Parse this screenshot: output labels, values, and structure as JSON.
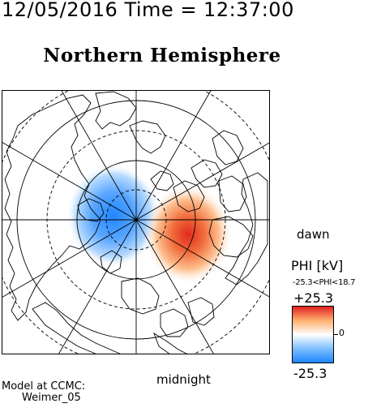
{
  "header": {
    "timestamp": "12/05/2016 Time = 12:37:00"
  },
  "map": {
    "title": "Northern Hemisphere",
    "projection": "polar-north",
    "local_time_labels": {
      "dawn": "dawn",
      "midnight": "midnight"
    },
    "potential_cells": [
      {
        "sign": "negative",
        "color": "#3a8ff0"
      },
      {
        "sign": "positive",
        "color": "#e03a2a"
      }
    ]
  },
  "legend": {
    "title": "PHI [kV]",
    "range_text": "-25.3<PHI<18.7",
    "max_label": "+25.3",
    "min_label": "-25.3",
    "zero_label": "0",
    "colorscale": [
      "#1f86ff",
      "#7fc0ff",
      "#ffffff",
      "#ffb070",
      "#e02020"
    ]
  },
  "credit": {
    "line1": "Model at CCMC:",
    "line2": "Weimer_05"
  }
}
